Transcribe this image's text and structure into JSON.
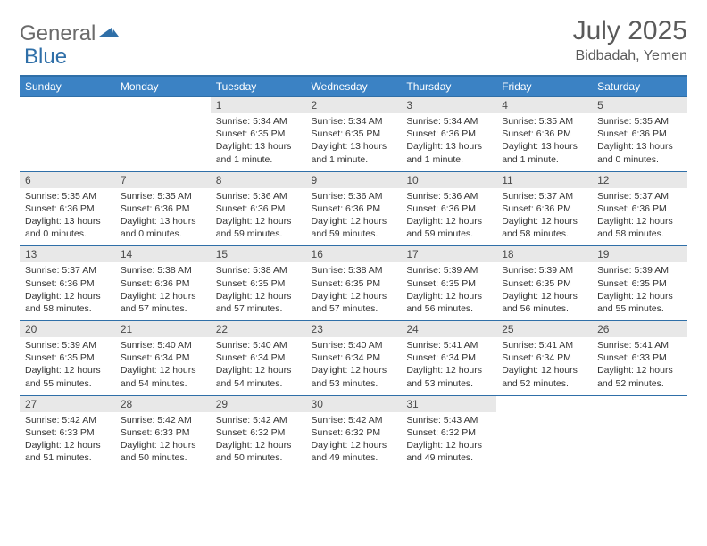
{
  "logo": {
    "part1": "General",
    "part2": "Blue"
  },
  "title": "July 2025",
  "location": "Bidbadah, Yemen",
  "colors": {
    "header_bg": "#3b82c4",
    "header_border": "#2f6fa8",
    "daynum_bg": "#e8e8e8",
    "logo_gray": "#6b6b6b",
    "logo_blue": "#2f6fa8"
  },
  "day_headers": [
    "Sunday",
    "Monday",
    "Tuesday",
    "Wednesday",
    "Thursday",
    "Friday",
    "Saturday"
  ],
  "weeks": [
    [
      {
        "num": "",
        "lines": []
      },
      {
        "num": "",
        "lines": []
      },
      {
        "num": "1",
        "lines": [
          "Sunrise: 5:34 AM",
          "Sunset: 6:35 PM",
          "Daylight: 13 hours",
          "and 1 minute."
        ]
      },
      {
        "num": "2",
        "lines": [
          "Sunrise: 5:34 AM",
          "Sunset: 6:35 PM",
          "Daylight: 13 hours",
          "and 1 minute."
        ]
      },
      {
        "num": "3",
        "lines": [
          "Sunrise: 5:34 AM",
          "Sunset: 6:36 PM",
          "Daylight: 13 hours",
          "and 1 minute."
        ]
      },
      {
        "num": "4",
        "lines": [
          "Sunrise: 5:35 AM",
          "Sunset: 6:36 PM",
          "Daylight: 13 hours",
          "and 1 minute."
        ]
      },
      {
        "num": "5",
        "lines": [
          "Sunrise: 5:35 AM",
          "Sunset: 6:36 PM",
          "Daylight: 13 hours",
          "and 0 minutes."
        ]
      }
    ],
    [
      {
        "num": "6",
        "lines": [
          "Sunrise: 5:35 AM",
          "Sunset: 6:36 PM",
          "Daylight: 13 hours",
          "and 0 minutes."
        ]
      },
      {
        "num": "7",
        "lines": [
          "Sunrise: 5:35 AM",
          "Sunset: 6:36 PM",
          "Daylight: 13 hours",
          "and 0 minutes."
        ]
      },
      {
        "num": "8",
        "lines": [
          "Sunrise: 5:36 AM",
          "Sunset: 6:36 PM",
          "Daylight: 12 hours",
          "and 59 minutes."
        ]
      },
      {
        "num": "9",
        "lines": [
          "Sunrise: 5:36 AM",
          "Sunset: 6:36 PM",
          "Daylight: 12 hours",
          "and 59 minutes."
        ]
      },
      {
        "num": "10",
        "lines": [
          "Sunrise: 5:36 AM",
          "Sunset: 6:36 PM",
          "Daylight: 12 hours",
          "and 59 minutes."
        ]
      },
      {
        "num": "11",
        "lines": [
          "Sunrise: 5:37 AM",
          "Sunset: 6:36 PM",
          "Daylight: 12 hours",
          "and 58 minutes."
        ]
      },
      {
        "num": "12",
        "lines": [
          "Sunrise: 5:37 AM",
          "Sunset: 6:36 PM",
          "Daylight: 12 hours",
          "and 58 minutes."
        ]
      }
    ],
    [
      {
        "num": "13",
        "lines": [
          "Sunrise: 5:37 AM",
          "Sunset: 6:36 PM",
          "Daylight: 12 hours",
          "and 58 minutes."
        ]
      },
      {
        "num": "14",
        "lines": [
          "Sunrise: 5:38 AM",
          "Sunset: 6:36 PM",
          "Daylight: 12 hours",
          "and 57 minutes."
        ]
      },
      {
        "num": "15",
        "lines": [
          "Sunrise: 5:38 AM",
          "Sunset: 6:35 PM",
          "Daylight: 12 hours",
          "and 57 minutes."
        ]
      },
      {
        "num": "16",
        "lines": [
          "Sunrise: 5:38 AM",
          "Sunset: 6:35 PM",
          "Daylight: 12 hours",
          "and 57 minutes."
        ]
      },
      {
        "num": "17",
        "lines": [
          "Sunrise: 5:39 AM",
          "Sunset: 6:35 PM",
          "Daylight: 12 hours",
          "and 56 minutes."
        ]
      },
      {
        "num": "18",
        "lines": [
          "Sunrise: 5:39 AM",
          "Sunset: 6:35 PM",
          "Daylight: 12 hours",
          "and 56 minutes."
        ]
      },
      {
        "num": "19",
        "lines": [
          "Sunrise: 5:39 AM",
          "Sunset: 6:35 PM",
          "Daylight: 12 hours",
          "and 55 minutes."
        ]
      }
    ],
    [
      {
        "num": "20",
        "lines": [
          "Sunrise: 5:39 AM",
          "Sunset: 6:35 PM",
          "Daylight: 12 hours",
          "and 55 minutes."
        ]
      },
      {
        "num": "21",
        "lines": [
          "Sunrise: 5:40 AM",
          "Sunset: 6:34 PM",
          "Daylight: 12 hours",
          "and 54 minutes."
        ]
      },
      {
        "num": "22",
        "lines": [
          "Sunrise: 5:40 AM",
          "Sunset: 6:34 PM",
          "Daylight: 12 hours",
          "and 54 minutes."
        ]
      },
      {
        "num": "23",
        "lines": [
          "Sunrise: 5:40 AM",
          "Sunset: 6:34 PM",
          "Daylight: 12 hours",
          "and 53 minutes."
        ]
      },
      {
        "num": "24",
        "lines": [
          "Sunrise: 5:41 AM",
          "Sunset: 6:34 PM",
          "Daylight: 12 hours",
          "and 53 minutes."
        ]
      },
      {
        "num": "25",
        "lines": [
          "Sunrise: 5:41 AM",
          "Sunset: 6:34 PM",
          "Daylight: 12 hours",
          "and 52 minutes."
        ]
      },
      {
        "num": "26",
        "lines": [
          "Sunrise: 5:41 AM",
          "Sunset: 6:33 PM",
          "Daylight: 12 hours",
          "and 52 minutes."
        ]
      }
    ],
    [
      {
        "num": "27",
        "lines": [
          "Sunrise: 5:42 AM",
          "Sunset: 6:33 PM",
          "Daylight: 12 hours",
          "and 51 minutes."
        ]
      },
      {
        "num": "28",
        "lines": [
          "Sunrise: 5:42 AM",
          "Sunset: 6:33 PM",
          "Daylight: 12 hours",
          "and 50 minutes."
        ]
      },
      {
        "num": "29",
        "lines": [
          "Sunrise: 5:42 AM",
          "Sunset: 6:32 PM",
          "Daylight: 12 hours",
          "and 50 minutes."
        ]
      },
      {
        "num": "30",
        "lines": [
          "Sunrise: 5:42 AM",
          "Sunset: 6:32 PM",
          "Daylight: 12 hours",
          "and 49 minutes."
        ]
      },
      {
        "num": "31",
        "lines": [
          "Sunrise: 5:43 AM",
          "Sunset: 6:32 PM",
          "Daylight: 12 hours",
          "and 49 minutes."
        ]
      },
      {
        "num": "",
        "lines": []
      },
      {
        "num": "",
        "lines": []
      }
    ]
  ]
}
